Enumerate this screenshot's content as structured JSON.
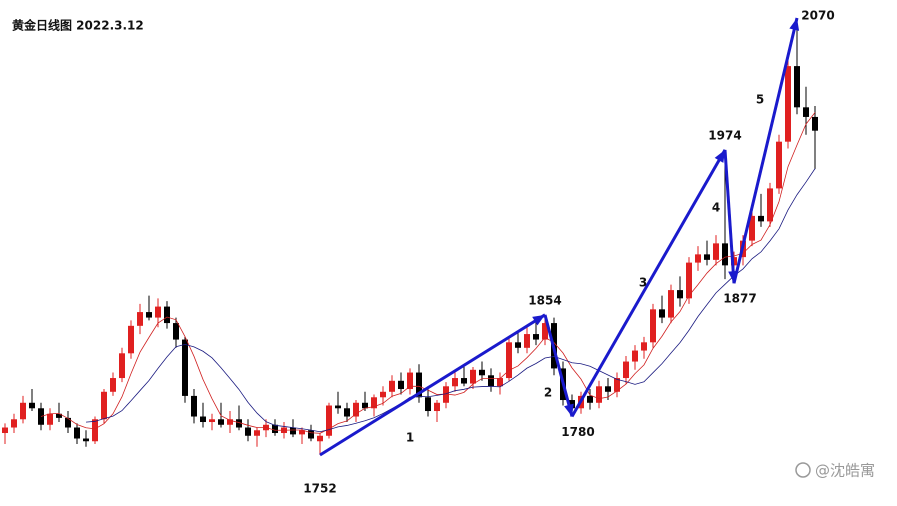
{
  "chart_data": {
    "type": "candlestick",
    "title": "黄金日线图 2022.3.12",
    "watermark": "@沈皓寓",
    "up_color": "#e02020",
    "down_color": "#000000",
    "wave_color": "#1a1acc",
    "ohlc": [
      [
        1768,
        1775,
        1760,
        1772
      ],
      [
        1772,
        1782,
        1768,
        1778
      ],
      [
        1778,
        1795,
        1775,
        1790
      ],
      [
        1790,
        1800,
        1784,
        1786
      ],
      [
        1786,
        1790,
        1770,
        1774
      ],
      [
        1774,
        1786,
        1770,
        1782
      ],
      [
        1782,
        1790,
        1776,
        1779
      ],
      [
        1779,
        1784,
        1768,
        1772
      ],
      [
        1772,
        1775,
        1760,
        1764
      ],
      [
        1764,
        1770,
        1758,
        1762
      ],
      [
        1762,
        1780,
        1760,
        1778
      ],
      [
        1778,
        1800,
        1775,
        1798
      ],
      [
        1798,
        1812,
        1795,
        1808
      ],
      [
        1808,
        1830,
        1805,
        1826
      ],
      [
        1826,
        1850,
        1822,
        1846
      ],
      [
        1846,
        1862,
        1840,
        1856
      ],
      [
        1856,
        1868,
        1850,
        1852
      ],
      [
        1852,
        1866,
        1845,
        1860
      ],
      [
        1860,
        1864,
        1844,
        1848
      ],
      [
        1848,
        1852,
        1830,
        1836
      ],
      [
        1836,
        1838,
        1790,
        1795
      ],
      [
        1795,
        1800,
        1775,
        1780
      ],
      [
        1780,
        1790,
        1772,
        1776
      ],
      [
        1776,
        1782,
        1770,
        1778
      ],
      [
        1778,
        1790,
        1772,
        1774
      ],
      [
        1774,
        1784,
        1768,
        1778
      ],
      [
        1778,
        1788,
        1770,
        1772
      ],
      [
        1772,
        1778,
        1762,
        1766
      ],
      [
        1766,
        1772,
        1758,
        1770
      ],
      [
        1770,
        1778,
        1765,
        1774
      ],
      [
        1774,
        1778,
        1766,
        1768
      ],
      [
        1768,
        1776,
        1764,
        1772
      ],
      [
        1772,
        1778,
        1765,
        1767
      ],
      [
        1767,
        1772,
        1760,
        1770
      ],
      [
        1770,
        1774,
        1762,
        1764
      ],
      [
        1762,
        1768,
        1752,
        1766
      ],
      [
        1766,
        1790,
        1764,
        1788
      ],
      [
        1788,
        1798,
        1782,
        1786
      ],
      [
        1786,
        1790,
        1776,
        1780
      ],
      [
        1780,
        1792,
        1776,
        1790
      ],
      [
        1790,
        1798,
        1784,
        1786
      ],
      [
        1786,
        1796,
        1780,
        1794
      ],
      [
        1794,
        1802,
        1788,
        1798
      ],
      [
        1798,
        1810,
        1794,
        1806
      ],
      [
        1806,
        1812,
        1796,
        1800
      ],
      [
        1800,
        1815,
        1796,
        1812
      ],
      [
        1812,
        1818,
        1790,
        1794
      ],
      [
        1794,
        1802,
        1780,
        1784
      ],
      [
        1784,
        1792,
        1776,
        1790
      ],
      [
        1790,
        1805,
        1786,
        1802
      ],
      [
        1802,
        1812,
        1798,
        1808
      ],
      [
        1808,
        1818,
        1802,
        1804
      ],
      [
        1804,
        1816,
        1800,
        1814
      ],
      [
        1814,
        1820,
        1806,
        1810
      ],
      [
        1810,
        1815,
        1798,
        1802
      ],
      [
        1802,
        1812,
        1796,
        1808
      ],
      [
        1808,
        1838,
        1806,
        1834
      ],
      [
        1834,
        1842,
        1826,
        1830
      ],
      [
        1830,
        1845,
        1826,
        1840
      ],
      [
        1840,
        1850,
        1832,
        1836
      ],
      [
        1836,
        1854,
        1832,
        1848
      ],
      [
        1848,
        1852,
        1810,
        1815
      ],
      [
        1815,
        1820,
        1788,
        1792
      ],
      [
        1792,
        1796,
        1780,
        1786
      ],
      [
        1786,
        1798,
        1782,
        1795
      ],
      [
        1795,
        1800,
        1785,
        1790
      ],
      [
        1790,
        1806,
        1786,
        1802
      ],
      [
        1802,
        1808,
        1792,
        1798
      ],
      [
        1798,
        1812,
        1794,
        1808
      ],
      [
        1808,
        1824,
        1804,
        1820
      ],
      [
        1820,
        1832,
        1814,
        1828
      ],
      [
        1828,
        1838,
        1822,
        1834
      ],
      [
        1834,
        1862,
        1830,
        1858
      ],
      [
        1858,
        1868,
        1848,
        1852
      ],
      [
        1852,
        1876,
        1848,
        1872
      ],
      [
        1872,
        1882,
        1860,
        1866
      ],
      [
        1866,
        1896,
        1862,
        1892
      ],
      [
        1892,
        1904,
        1886,
        1898
      ],
      [
        1898,
        1908,
        1890,
        1894
      ],
      [
        1894,
        1912,
        1890,
        1906
      ],
      [
        1906,
        1974,
        1880,
        1890
      ],
      [
        1890,
        1900,
        1877,
        1896
      ],
      [
        1896,
        1912,
        1890,
        1908
      ],
      [
        1908,
        1930,
        1904,
        1926
      ],
      [
        1926,
        1942,
        1918,
        1922
      ],
      [
        1922,
        1950,
        1918,
        1946
      ],
      [
        1946,
        1985,
        1942,
        1980
      ],
      [
        1980,
        2040,
        1975,
        2035
      ],
      [
        2035,
        2070,
        2000,
        2005
      ],
      [
        2005,
        2020,
        1985,
        1998
      ],
      [
        1998,
        2006,
        1960,
        1988
      ]
    ],
    "pivots": [
      {
        "label": "1752",
        "value": 1752,
        "index": 35
      },
      {
        "label": "1854",
        "value": 1854,
        "index": 60
      },
      {
        "label": "1780",
        "value": 1780,
        "index": 63
      },
      {
        "label": "1974",
        "value": 1974,
        "index": 80
      },
      {
        "label": "1877",
        "value": 1877,
        "index": 81
      },
      {
        "label": "2070",
        "value": 2070,
        "index": 88
      }
    ],
    "wave_labels": [
      "1",
      "2",
      "3",
      "4",
      "5"
    ]
  }
}
